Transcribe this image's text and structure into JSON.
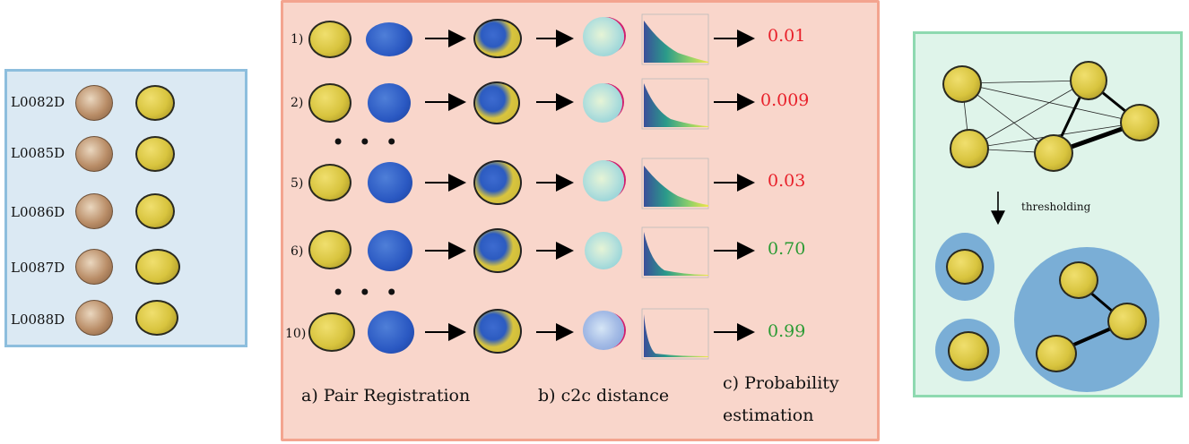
{
  "left_panel": {
    "ids": [
      "L0082D",
      "L0085D",
      "L0086D",
      "L0087D",
      "L0088D"
    ]
  },
  "middle_panel": {
    "rows": [
      {
        "label": "1)",
        "score": "0.01",
        "color": "#e8202a"
      },
      {
        "label": "2)",
        "score": "0.009",
        "color": "#e8202a"
      },
      {
        "label": "5)",
        "score": "0.03",
        "color": "#e8202a"
      },
      {
        "label": "6)",
        "score": "0.70",
        "color": "#2b9b34"
      },
      {
        "label": "10)",
        "score": "0.99",
        "color": "#2b9b34"
      }
    ],
    "ellipsis": "• • •",
    "captions": {
      "a": "a) Pair Registration",
      "b": "b) c2c distance",
      "c1": "c) Probability",
      "c2": "estimation"
    }
  },
  "right_panel": {
    "arrow_label": "thresholding"
  },
  "colors": {
    "red_score": "#e8202a",
    "green_score": "#2b9b34",
    "left_bg": "#dbe9f3",
    "mid_bg": "#f9d6cb",
    "right_bg": "#dff4ea"
  }
}
